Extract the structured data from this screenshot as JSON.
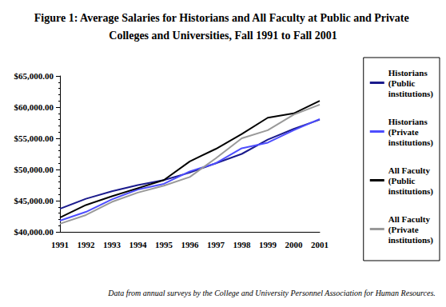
{
  "chart_data": {
    "type": "line",
    "title": "Figure 1: Average Salaries for Historians and All Faculty at Public and Private Colleges and Universities, Fall 1991 to Fall 2001",
    "annotation": "Data from annual surveys by the College and University Personnel Association for Human Resources.",
    "categories": [
      "1991",
      "1992",
      "1993",
      "1994",
      "1995",
      "1996",
      "1997",
      "1998",
      "1999",
      "2000",
      "2001"
    ],
    "series": [
      {
        "name": "Historians (Public institutions)",
        "color": "#1a1a8c",
        "values": [
          43700,
          45300,
          46500,
          47500,
          48300,
          49500,
          51000,
          52500,
          54800,
          56500,
          58000
        ]
      },
      {
        "name": "Historians (Private institutions)",
        "color": "#4d4dff",
        "values": [
          41800,
          43200,
          45200,
          46800,
          47700,
          49700,
          51000,
          53400,
          54300,
          56300,
          58100
        ]
      },
      {
        "name": "All Faculty (Public institutions)",
        "color": "#000000",
        "values": [
          42300,
          44300,
          45700,
          47000,
          48300,
          51300,
          53300,
          55700,
          58300,
          59000,
          61000
        ]
      },
      {
        "name": "All Faculty (Private institutions)",
        "color": "#999999",
        "values": [
          41300,
          42700,
          44800,
          46300,
          47400,
          48800,
          51800,
          55000,
          56300,
          58800,
          60400
        ]
      }
    ],
    "ylim": [
      40000,
      65000
    ],
    "yticks": [
      {
        "value": 40000,
        "label": "$40,000.00"
      },
      {
        "value": 45000,
        "label": "$45,000.00"
      },
      {
        "value": 50000,
        "label": "$50,000.00"
      },
      {
        "value": 55000,
        "label": "$55,000.00"
      },
      {
        "value": 60000,
        "label": "$60,000.00"
      },
      {
        "value": 65000,
        "label": "$65,000.00"
      }
    ],
    "grid": false,
    "legend": "right"
  }
}
